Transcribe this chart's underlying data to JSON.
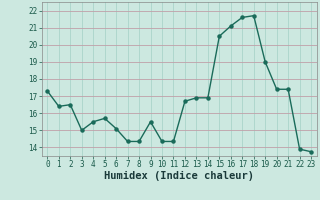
{
  "x": [
    0,
    1,
    2,
    3,
    4,
    5,
    6,
    7,
    8,
    9,
    10,
    11,
    12,
    13,
    14,
    15,
    16,
    17,
    18,
    19,
    20,
    21,
    22,
    23
  ],
  "y": [
    17.3,
    16.4,
    16.5,
    15.0,
    15.5,
    15.7,
    15.1,
    14.35,
    14.35,
    15.5,
    14.35,
    14.35,
    16.7,
    16.9,
    16.9,
    20.5,
    21.1,
    21.6,
    21.7,
    19.0,
    17.4,
    17.4,
    13.9,
    13.75
  ],
  "line_color": "#1a6b5a",
  "marker": "o",
  "markersize": 2.2,
  "linewidth": 1.0,
  "bg_color": "#cce8e0",
  "grid_color": "#aad4ca",
  "grid_major_color": "#c0a0a8",
  "xlabel": "Humidex (Indice chaleur)",
  "ylim": [
    13.5,
    22.5
  ],
  "xlim": [
    -0.5,
    23.5
  ],
  "yticks": [
    14,
    15,
    16,
    17,
    18,
    19,
    20,
    21,
    22
  ],
  "xticks": [
    0,
    1,
    2,
    3,
    4,
    5,
    6,
    7,
    8,
    9,
    10,
    11,
    12,
    13,
    14,
    15,
    16,
    17,
    18,
    19,
    20,
    21,
    22,
    23
  ],
  "tick_fontsize": 5.5,
  "xlabel_fontsize": 7.5
}
